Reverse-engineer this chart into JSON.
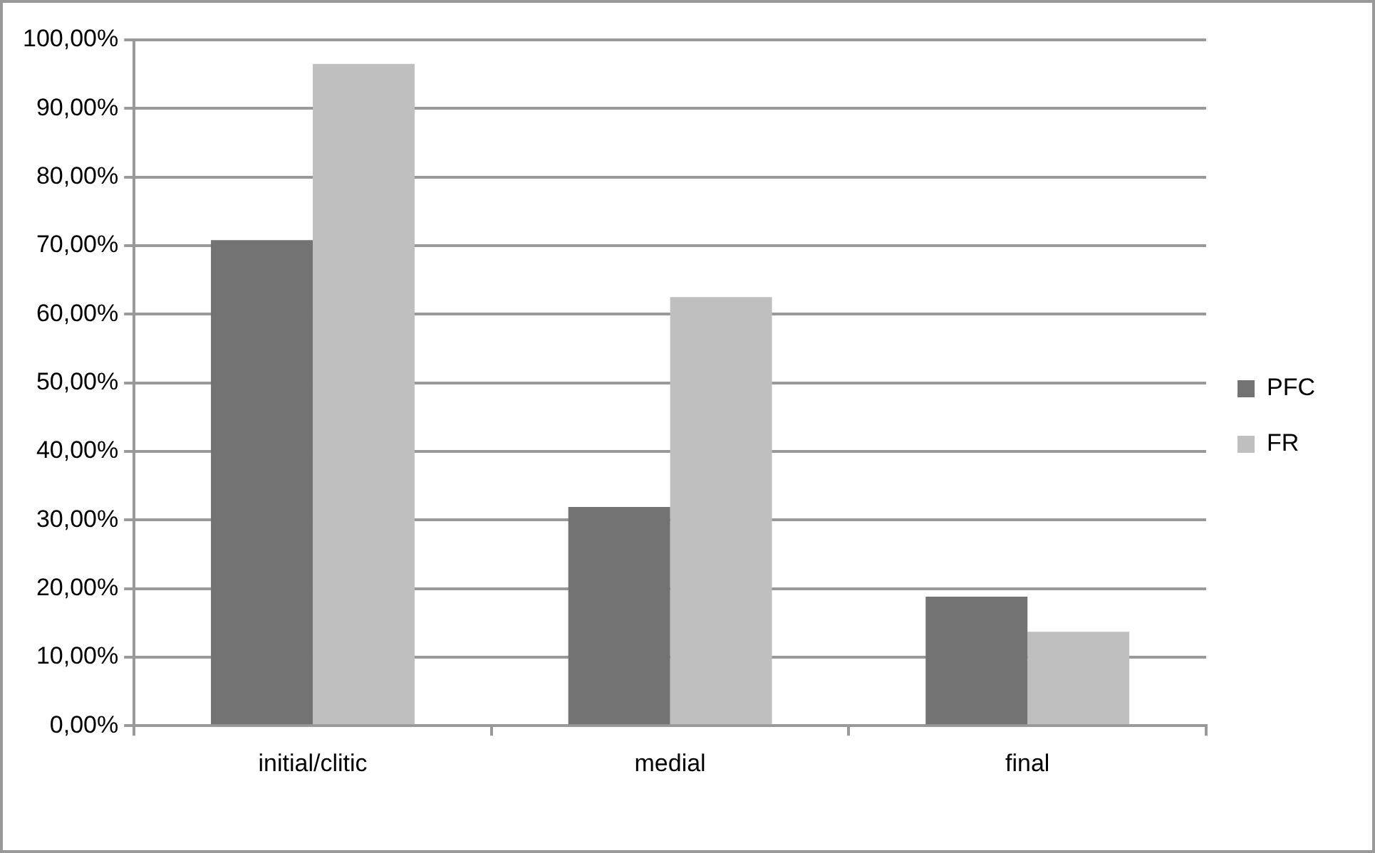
{
  "chart_data": {
    "type": "bar",
    "categories": [
      "initial/clitic",
      "medial",
      "final"
    ],
    "series": [
      {
        "name": "PFC",
        "color": "#737373",
        "values": [
          70.8,
          31.9,
          18.8
        ]
      },
      {
        "name": "FR",
        "color": "#bfbfbf",
        "values": [
          96.5,
          62.5,
          13.7
        ]
      }
    ],
    "ylim": [
      0,
      100
    ],
    "yticks": [
      {
        "value": 0,
        "label": "0,00%"
      },
      {
        "value": 10,
        "label": "10,00%"
      },
      {
        "value": 20,
        "label": "20,00%"
      },
      {
        "value": 30,
        "label": "30,00%"
      },
      {
        "value": 40,
        "label": "40,00%"
      },
      {
        "value": 50,
        "label": "50,00%"
      },
      {
        "value": 60,
        "label": "60,00%"
      },
      {
        "value": 70,
        "label": "70,00%"
      },
      {
        "value": 80,
        "label": "80,00%"
      },
      {
        "value": 90,
        "label": "90,00%"
      },
      {
        "value": 100,
        "label": "100,00%"
      }
    ],
    "grid": "y",
    "legend": "right"
  }
}
